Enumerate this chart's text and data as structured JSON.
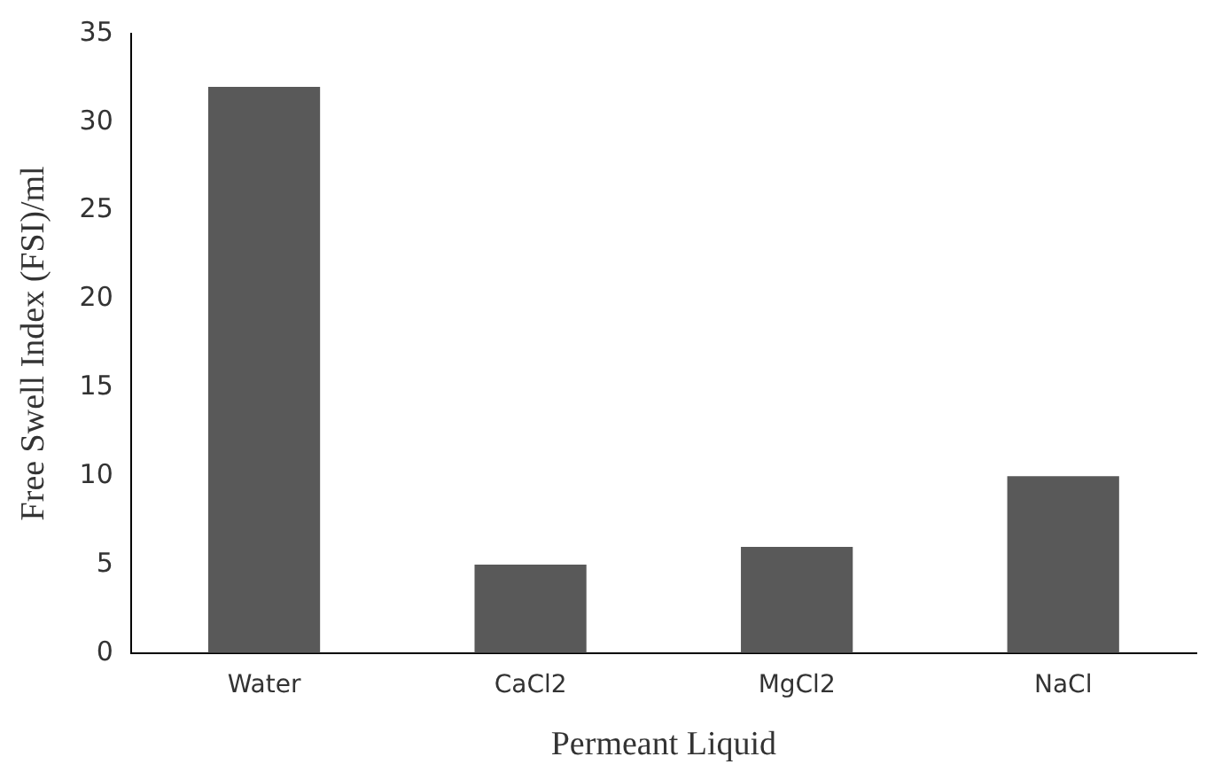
{
  "chart_data": {
    "type": "bar",
    "xlabel": "Permeant Liquid",
    "ylabel": "Free Swell Index (FSI)/ml",
    "categories": [
      "Water",
      "CaCl2",
      "MgCl2",
      "NaCl"
    ],
    "values": [
      32,
      5,
      6,
      10
    ],
    "color": "#595959",
    "ylim": [
      0,
      35
    ],
    "yticks": [
      0,
      5,
      10,
      15,
      20,
      25,
      30,
      35
    ],
    "grid": false,
    "legend": false
  }
}
